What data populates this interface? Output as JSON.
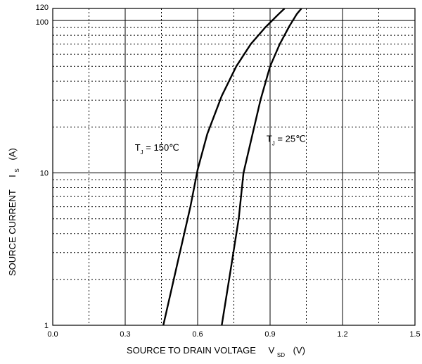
{
  "chart_data": {
    "type": "line",
    "title": "",
    "xlabel": {
      "main": "SOURCE TO DRAIN VOLTAGE",
      "sym": "V",
      "sub": "SD",
      "unit": "(V)"
    },
    "ylabel": {
      "main": "SOURCE CURRENT",
      "sym": "I",
      "sub": "S",
      "unit": "(A)"
    },
    "xlim": [
      0.0,
      1.5
    ],
    "ylim": [
      1,
      120
    ],
    "yscale": "log",
    "xticks": [
      0.0,
      0.3,
      0.6,
      0.9,
      1.2,
      1.5
    ],
    "xtick_labels": [
      "0.0",
      "0.3",
      "0.6",
      "0.9",
      "1.2",
      "1.5"
    ],
    "yticks": [
      1,
      10,
      100,
      120
    ],
    "ytick_labels": [
      "1",
      "10",
      "100",
      "120"
    ],
    "grid": true,
    "series": [
      {
        "name": "T_J = 150℃",
        "label_main": "T",
        "label_sub": "J",
        "label_rest": " = 150℃",
        "x": [
          0.458,
          0.52,
          0.57,
          0.6,
          0.64,
          0.7,
          0.76,
          0.82,
          0.88,
          0.935,
          0.96
        ],
        "y": [
          1,
          2.7,
          6.0,
          10.5,
          18,
          32,
          50,
          70,
          90,
          110,
          120
        ]
      },
      {
        "name": "T_J = 25℃",
        "label_main": "T",
        "label_sub": "J",
        "label_rest": " = 25℃",
        "x": [
          0.7,
          0.74,
          0.77,
          0.79,
          0.82,
          0.86,
          0.9,
          0.94,
          0.98,
          1.01,
          1.03
        ],
        "y": [
          1,
          2.5,
          5.0,
          10,
          16,
          30,
          50,
          70,
          92,
          110,
          120
        ]
      }
    ]
  }
}
